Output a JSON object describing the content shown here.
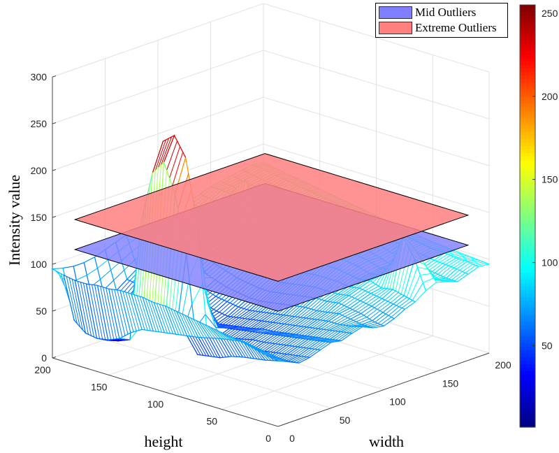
{
  "chart_data": {
    "type": "surface",
    "title": "",
    "xlabel": "width",
    "ylabel": "height",
    "zlabel": "Intensity value",
    "x_ticks": [
      "0",
      "50",
      "100",
      "150",
      "200"
    ],
    "y_ticks": [
      "0",
      "50",
      "100",
      "150",
      "200"
    ],
    "z_ticks": [
      "0",
      "50",
      "100",
      "150",
      "200",
      "250",
      "300"
    ],
    "xlim": [
      0,
      200
    ],
    "ylim": [
      0,
      200
    ],
    "zlim": [
      0,
      300
    ],
    "grid": true,
    "grid_step": 10,
    "z_grid_rows_by_height": [
      [
        70,
        65,
        60,
        62,
        66,
        70,
        68,
        72,
        75,
        70,
        68,
        72,
        78,
        82,
        90,
        95,
        92,
        88,
        92,
        96,
        95
      ],
      [
        72,
        66,
        58,
        60,
        64,
        68,
        66,
        70,
        72,
        70,
        70,
        75,
        80,
        85,
        120,
        110,
        90,
        88,
        94,
        98,
        96
      ],
      [
        75,
        68,
        55,
        58,
        62,
        66,
        64,
        68,
        70,
        72,
        74,
        78,
        82,
        88,
        140,
        125,
        85,
        90,
        95,
        98,
        97
      ],
      [
        78,
        70,
        52,
        56,
        60,
        64,
        62,
        66,
        70,
        74,
        76,
        80,
        84,
        86,
        110,
        100,
        88,
        92,
        96,
        100,
        98
      ],
      [
        80,
        72,
        50,
        54,
        58,
        62,
        60,
        64,
        68,
        72,
        78,
        82,
        86,
        90,
        92,
        94,
        90,
        94,
        98,
        100,
        99
      ],
      [
        82,
        70,
        48,
        52,
        56,
        60,
        58,
        62,
        66,
        70,
        76,
        80,
        84,
        88,
        90,
        92,
        92,
        96,
        100,
        102,
        100
      ],
      [
        84,
        68,
        45,
        50,
        55,
        58,
        56,
        60,
        64,
        70,
        76,
        80,
        86,
        90,
        94,
        96,
        96,
        98,
        102,
        104,
        102
      ],
      [
        86,
        65,
        40,
        48,
        52,
        56,
        55,
        58,
        62,
        68,
        74,
        80,
        86,
        92,
        96,
        98,
        100,
        102,
        104,
        106,
        104
      ],
      [
        88,
        62,
        38,
        45,
        50,
        54,
        52,
        56,
        60,
        66,
        72,
        78,
        86,
        92,
        98,
        100,
        102,
        104,
        106,
        108,
        106
      ],
      [
        90,
        60,
        36,
        42,
        48,
        52,
        50,
        54,
        58,
        64,
        70,
        76,
        84,
        92,
        98,
        102,
        104,
        106,
        108,
        110,
        108
      ],
      [
        92,
        58,
        140,
        170,
        80,
        50,
        48,
        52,
        56,
        62,
        68,
        74,
        82,
        90,
        98,
        104,
        106,
        108,
        110,
        112,
        110
      ],
      [
        92,
        56,
        200,
        235,
        150,
        48,
        46,
        50,
        56,
        62,
        68,
        74,
        82,
        90,
        100,
        106,
        108,
        110,
        112,
        114,
        112
      ],
      [
        94,
        54,
        230,
        255,
        190,
        50,
        48,
        52,
        58,
        64,
        70,
        76,
        84,
        92,
        102,
        108,
        110,
        112,
        114,
        116,
        114
      ],
      [
        94,
        52,
        215,
        245,
        170,
        52,
        50,
        55,
        60,
        66,
        72,
        78,
        86,
        94,
        104,
        110,
        112,
        114,
        116,
        118,
        116
      ],
      [
        94,
        45,
        160,
        190,
        110,
        50,
        52,
        58,
        64,
        70,
        76,
        82,
        90,
        98,
        106,
        112,
        114,
        116,
        118,
        120,
        118
      ],
      [
        92,
        35,
        30,
        40,
        45,
        50,
        56,
        62,
        110,
        74,
        80,
        86,
        94,
        102,
        130,
        114,
        116,
        118,
        120,
        122,
        120
      ],
      [
        92,
        30,
        25,
        30,
        40,
        48,
        58,
        66,
        140,
        78,
        84,
        90,
        98,
        106,
        150,
        118,
        118,
        120,
        122,
        124,
        122
      ],
      [
        90,
        28,
        22,
        28,
        38,
        50,
        60,
        68,
        120,
        80,
        86,
        92,
        100,
        108,
        135,
        120,
        120,
        122,
        124,
        126,
        124
      ],
      [
        90,
        30,
        24,
        30,
        40,
        52,
        62,
        70,
        78,
        82,
        88,
        94,
        102,
        110,
        116,
        122,
        122,
        124,
        126,
        128,
        126
      ],
      [
        92,
        40,
        35,
        40,
        48,
        56,
        64,
        72,
        80,
        84,
        90,
        96,
        104,
        112,
        118,
        124,
        124,
        126,
        128,
        130,
        128
      ],
      [
        95,
        92,
        90,
        90,
        92,
        96,
        100,
        104,
        106,
        108,
        110,
        112,
        114,
        116,
        120,
        124,
        126,
        128,
        130,
        132,
        130
      ]
    ],
    "planes": [
      {
        "name": "Mid Outliers",
        "z": 123,
        "extent": [
          0,
          180
        ],
        "color": "#7f7fff"
      },
      {
        "name": "Extreme Outliers",
        "z": 155,
        "extent": [
          0,
          180
        ],
        "color": "#ff7f7f"
      }
    ],
    "legend": {
      "placement": "top-right",
      "entries": [
        "Mid Outliers",
        "Extreme Outliers"
      ]
    },
    "colorbar": {
      "colormap": "jet",
      "range": [
        1,
        255
      ],
      "ticks": [
        "50",
        "100",
        "150",
        "200",
        "250"
      ],
      "tick_values": [
        50,
        100,
        150,
        200,
        250
      ]
    }
  }
}
